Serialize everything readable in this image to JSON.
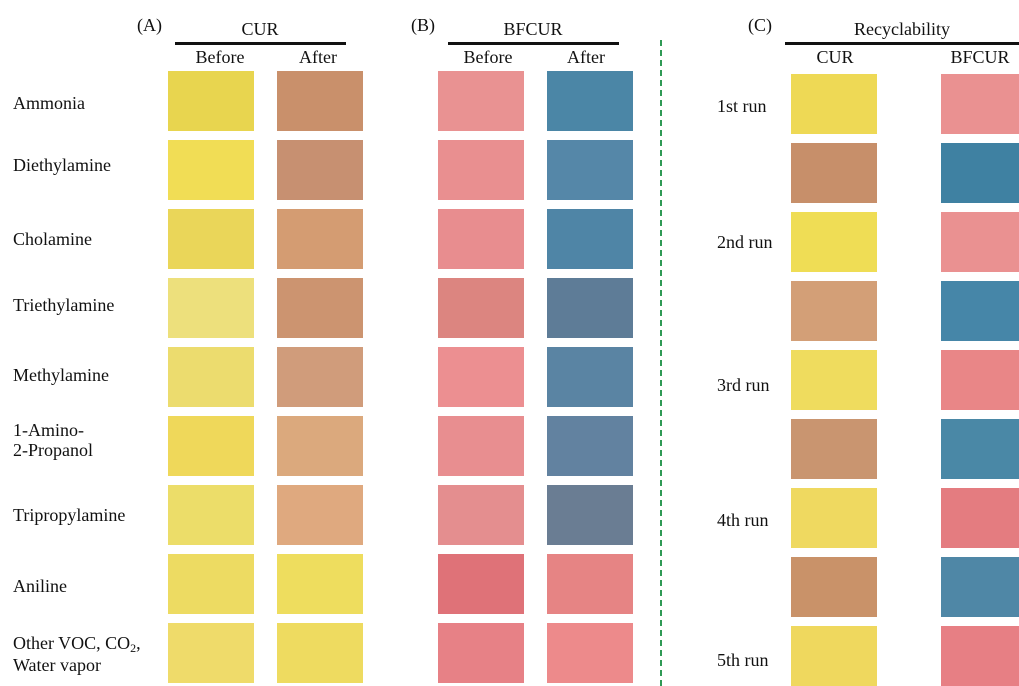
{
  "panel_a": {
    "label": "(A)",
    "title": "CUR",
    "before": "Before",
    "after": "After",
    "rows": [
      {
        "name": "Ammonia",
        "before_color": "#e8d54f",
        "after_color": "#c9906b"
      },
      {
        "name": "Diethylamine",
        "before_color": "#f1dd55",
        "after_color": "#c79071"
      },
      {
        "name": "Cholamine",
        "before_color": "#ead659",
        "after_color": "#d49c72"
      },
      {
        "name": "Triethylamine",
        "before_color": "#ede07c",
        "after_color": "#cc9470"
      },
      {
        "name": "Methylamine",
        "before_color": "#ecdc6e",
        "after_color": "#d09c7b"
      },
      {
        "name_line1": "1-Amino-",
        "name_line2": "2-Propanol",
        "before_color": "#efd85a",
        "after_color": "#dba97d"
      },
      {
        "name": "Tripropylamine",
        "before_color": "#ecdd69",
        "after_color": "#dfa97f"
      },
      {
        "name": "Aniline",
        "before_color": "#eddb62",
        "after_color": "#eedd5e"
      },
      {
        "name_line1": "Other VOC, CO",
        "name_sub": "2",
        "name_line1_tail": ",",
        "name_line2": "Water vapor",
        "before_color": "#efdb6a",
        "after_color": "#eedb60"
      }
    ]
  },
  "panel_b": {
    "label": "(B)",
    "title": "BFCUR",
    "before": "Before",
    "after": "After",
    "colors": [
      {
        "before": "#e99292",
        "after": "#4b86a6"
      },
      {
        "before": "#e98f90",
        "after": "#5587a8"
      },
      {
        "before": "#e88d8f",
        "after": "#4f85a6"
      },
      {
        "before": "#dc8580",
        "after": "#5e7c97"
      },
      {
        "before": "#ec8f91",
        "after": "#5a84a3"
      },
      {
        "before": "#e88e90",
        "after": "#6282a0"
      },
      {
        "before": "#e48e8f",
        "after": "#6a7d93"
      },
      {
        "before": "#df7278",
        "after": "#e68484"
      },
      {
        "before": "#e78186",
        "after": "#ed8a8b"
      }
    ]
  },
  "panel_c": {
    "label": "(C)",
    "title": "Recyclability",
    "col1": "CUR",
    "col2": "BFCUR",
    "runs": [
      "1st run",
      "2nd run",
      "3rd run",
      "4th run",
      "5th run"
    ],
    "cur_colors": [
      "#eed955",
      "#c78f6a",
      "#efdd55",
      "#d39f77",
      "#efdc5e",
      "#c99570",
      "#efd960",
      "#c99269",
      "#efd85e"
    ],
    "bfcur_colors": [
      "#ea9191",
      "#3f81a2",
      "#ea9191",
      "#4686a8",
      "#e98687",
      "#4a88a6",
      "#e47c80",
      "#4f87a6",
      "#e77f84"
    ]
  }
}
